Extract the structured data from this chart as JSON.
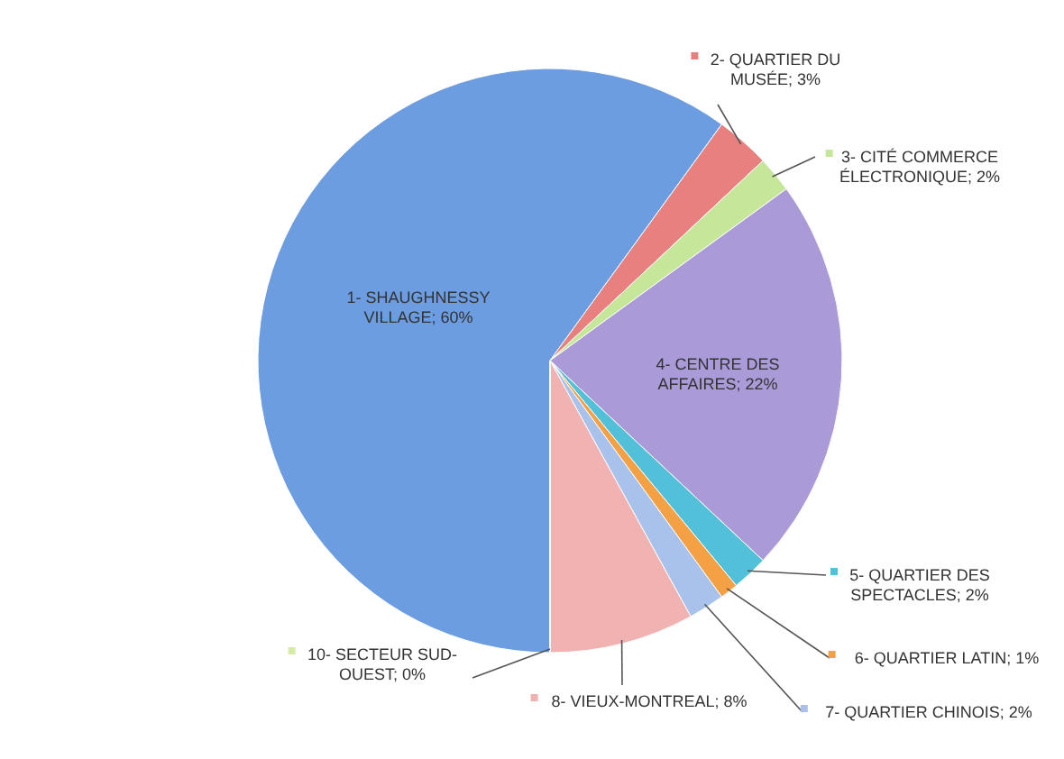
{
  "chart_data": {
    "type": "pie",
    "categories": [
      "1- SHAUGHNESSY VILLAGE",
      "2- QUARTIER DU MUSÉE",
      "3- CITÉ COMMERCE ÉLECTRONIQUE",
      "4- CENTRE DES AFFAIRES",
      "5- QUARTIER DES SPECTACLES",
      "6- QUARTIER LATIN",
      "7- QUARTIER CHINOIS",
      "8- VIEUX-MONTREAL",
      "10- SECTEUR SUD-OUEST"
    ],
    "values": [
      60,
      3,
      2,
      22,
      2,
      1,
      2,
      8,
      0
    ],
    "value_labels": [
      "60%",
      "3%",
      "2%",
      "22%",
      "2%",
      "1%",
      "2%",
      "8%",
      "0%"
    ],
    "colors": [
      "#6c9de0",
      "#e88080",
      "#c6e69a",
      "#ab9ad8",
      "#52c0d8",
      "#f4a044",
      "#a9c2ec",
      "#f1b2b2",
      "#d6eba6"
    ],
    "legend": "right"
  }
}
